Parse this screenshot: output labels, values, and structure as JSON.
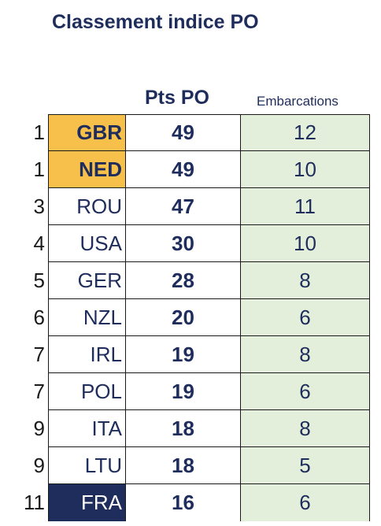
{
  "title": "Classement indice PO",
  "headers": {
    "points": "Pts PO",
    "boats": "Embarcations"
  },
  "colors": {
    "text_navy": "#1f2d5c",
    "highlight_gold": "#f6c04a",
    "highlight_navy": "#1f2d5c",
    "boats_column_bg": "#e4efdb"
  },
  "rows": [
    {
      "rank": "1",
      "country": "GBR",
      "points": "49",
      "boats": "12",
      "highlight": "gold"
    },
    {
      "rank": "1",
      "country": "NED",
      "points": "49",
      "boats": "10",
      "highlight": "gold"
    },
    {
      "rank": "3",
      "country": "ROU",
      "points": "47",
      "boats": "11",
      "highlight": "none"
    },
    {
      "rank": "4",
      "country": "USA",
      "points": "30",
      "boats": "10",
      "highlight": "none"
    },
    {
      "rank": "5",
      "country": "GER",
      "points": "28",
      "boats": "8",
      "highlight": "none"
    },
    {
      "rank": "6",
      "country": "NZL",
      "points": "20",
      "boats": "6",
      "highlight": "none"
    },
    {
      "rank": "7",
      "country": "IRL",
      "points": "19",
      "boats": "8",
      "highlight": "none"
    },
    {
      "rank": "7",
      "country": "POL",
      "points": "19",
      "boats": "6",
      "highlight": "none"
    },
    {
      "rank": "9",
      "country": "ITA",
      "points": "18",
      "boats": "8",
      "highlight": "none"
    },
    {
      "rank": "9",
      "country": "LTU",
      "points": "18",
      "boats": "5",
      "highlight": "none"
    },
    {
      "rank": "11",
      "country": "FRA",
      "points": "16",
      "boats": "6",
      "highlight": "navy"
    }
  ]
}
